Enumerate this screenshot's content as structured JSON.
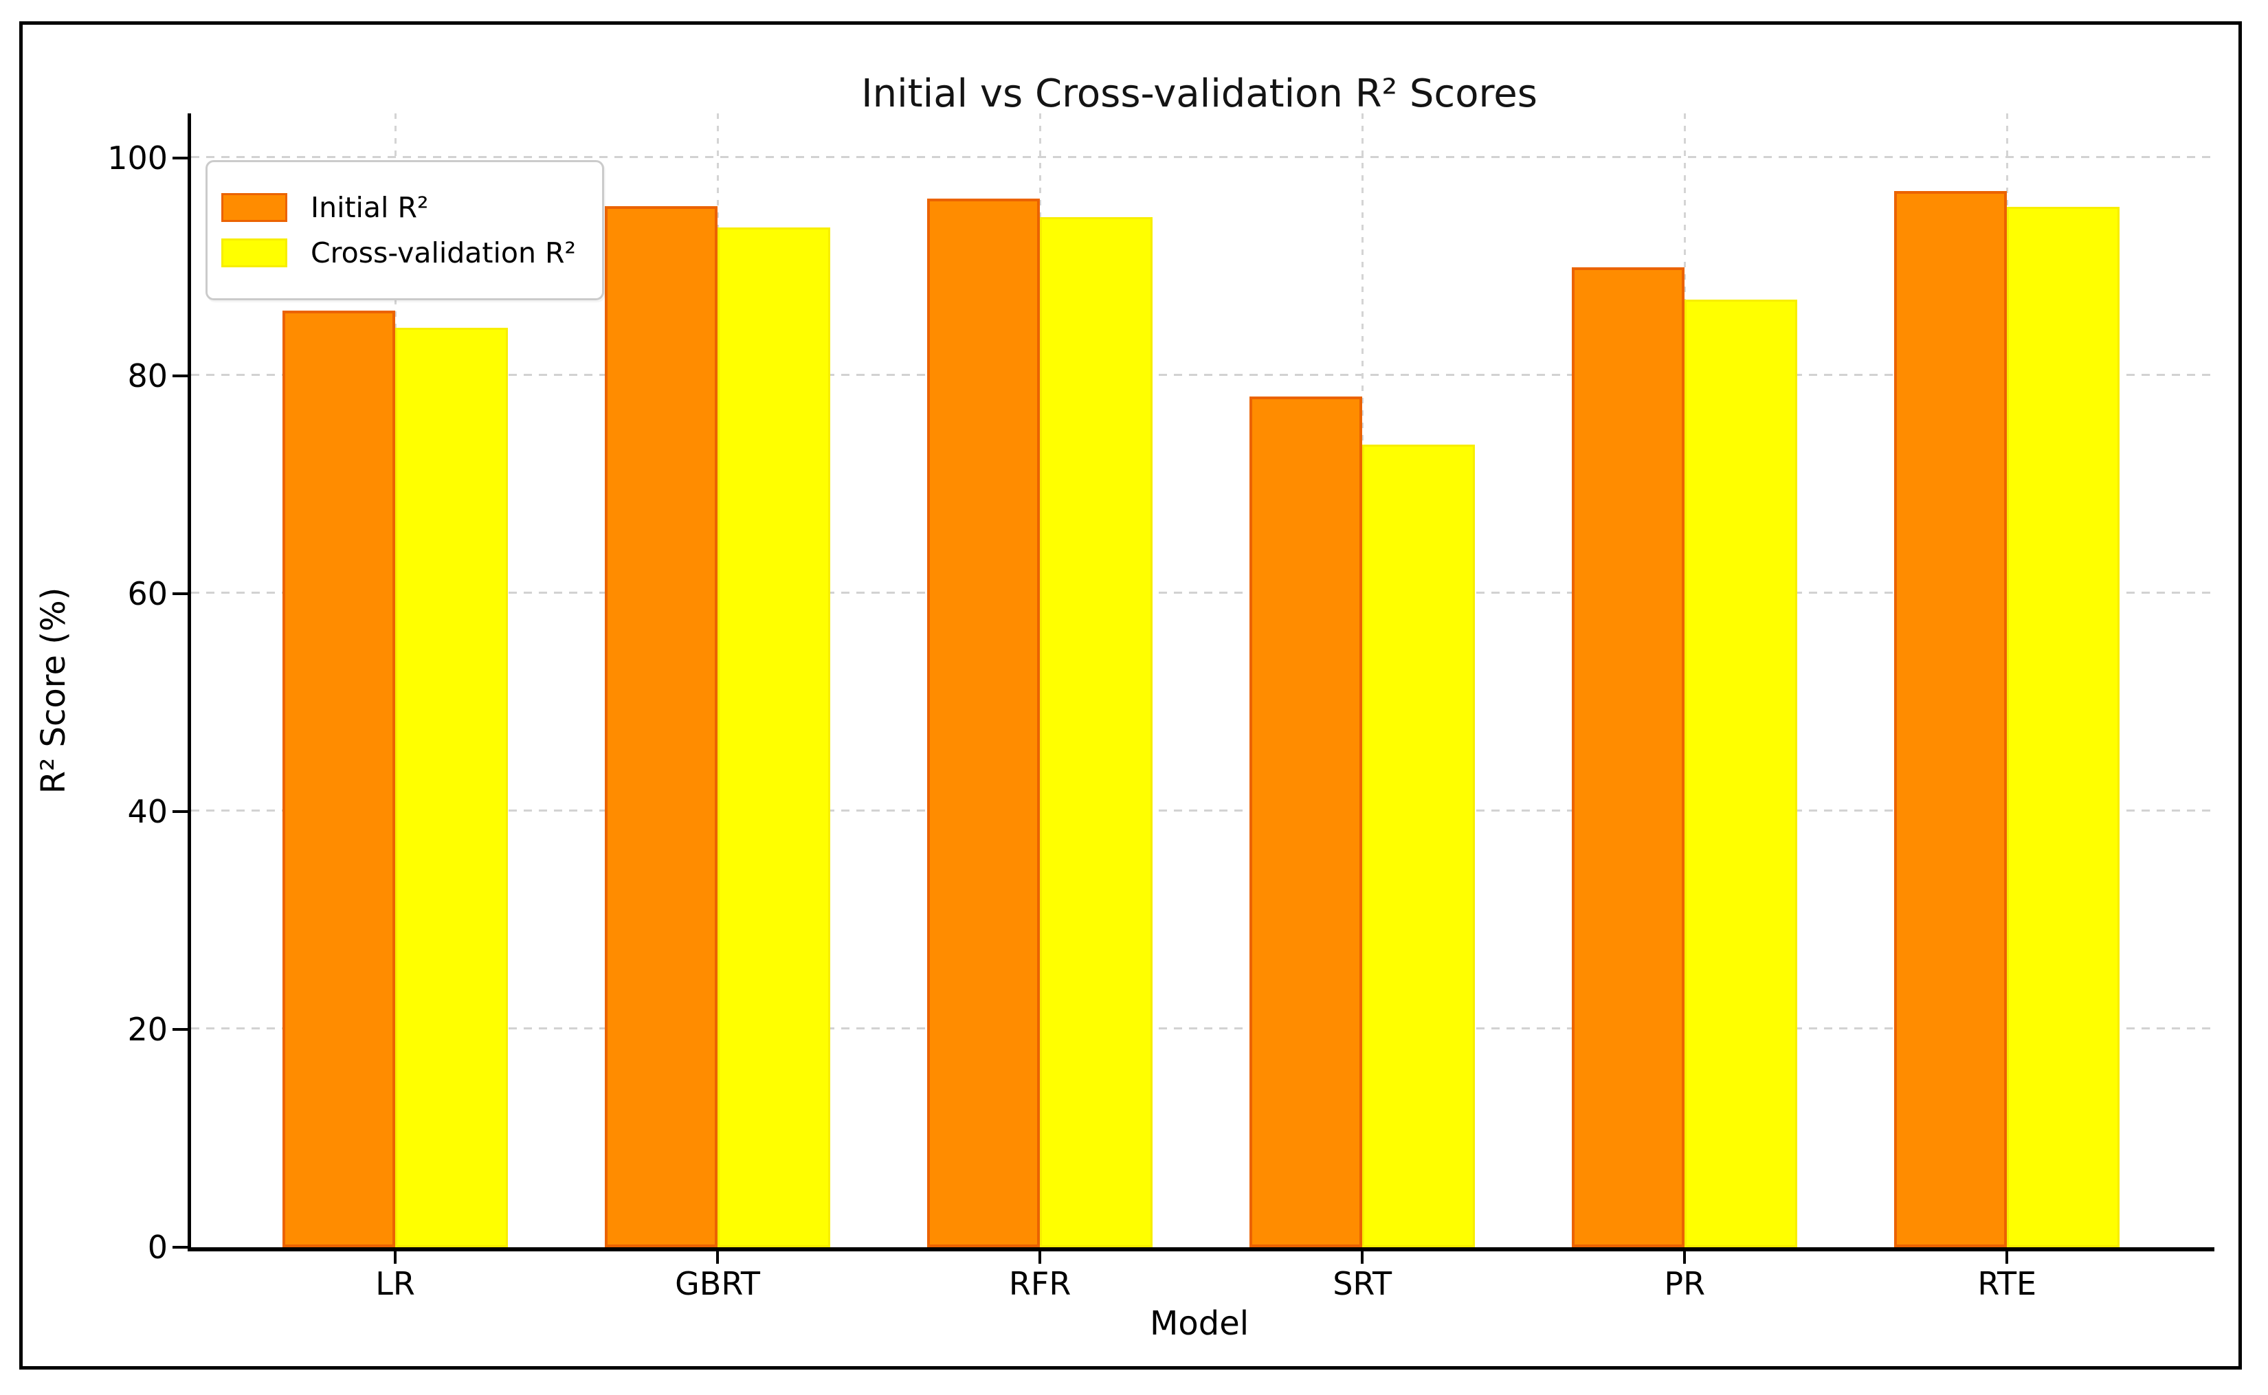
{
  "figure": {
    "title": "Initial vs Cross-validation R² Scores",
    "xlabel": "Model",
    "ylabel": "R² Score (%)"
  },
  "chart_data": {
    "type": "bar",
    "title": "Initial vs Cross-validation R² Scores",
    "xlabel": "Model",
    "ylabel": "R² Score (%)",
    "categories": [
      "LR",
      "GBRT",
      "RFR",
      "SRT",
      "PR",
      "RTE"
    ],
    "series": [
      {
        "name": "Initial R²",
        "color": "#FF8C00",
        "edge_color": "#EB6302",
        "values": [
          86.0,
          95.6,
          96.3,
          78.1,
          90.0,
          97.0
        ]
      },
      {
        "name": "Cross-validation R²",
        "color": "#FFFF00",
        "edge_color": "#F7EE00",
        "values": [
          84.4,
          93.6,
          94.6,
          73.7,
          87.0,
          95.5
        ]
      }
    ],
    "yticks": [
      0,
      20,
      40,
      60,
      80,
      100
    ],
    "ylim": [
      0,
      104
    ],
    "grid": true,
    "legend_position": "upper left",
    "bar_width_ratio": 0.35
  }
}
